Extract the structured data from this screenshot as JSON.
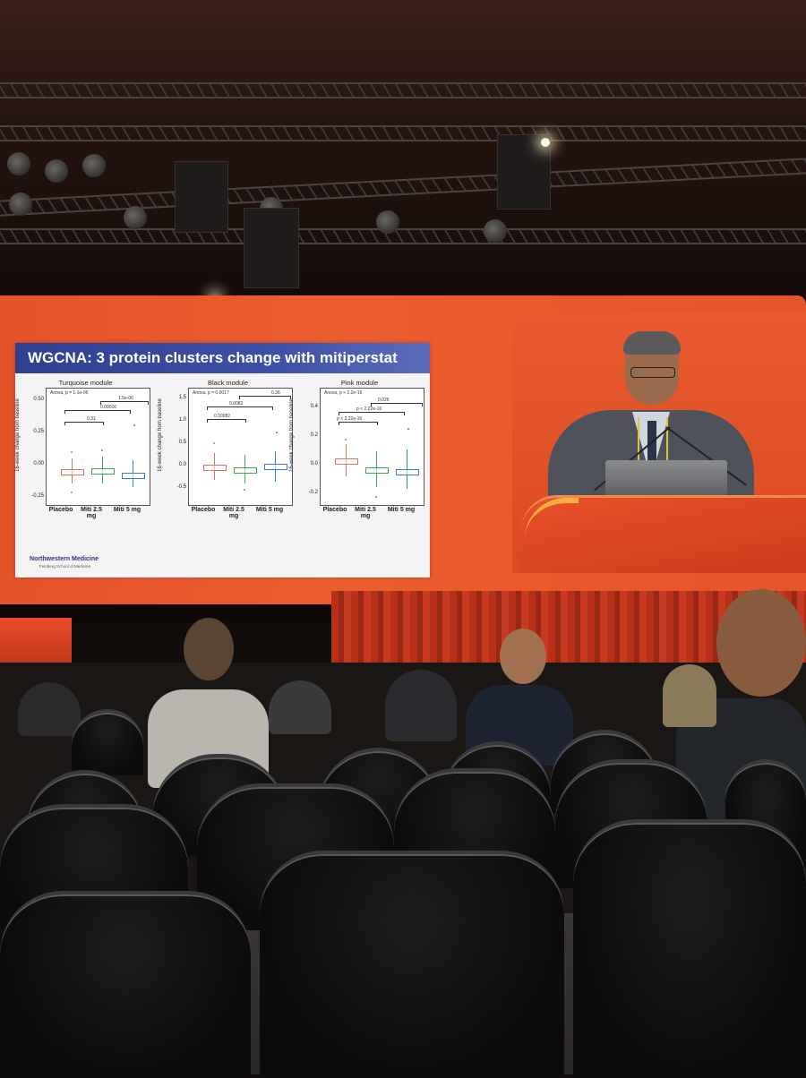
{
  "slide": {
    "title": "WGCNA: 3 protein clusters change with mitiperstat",
    "ylabel": "16-week change from baseline",
    "logo_name": "Northwestern Medicine",
    "logo_sub": "Feinberg School of Medicine",
    "panels": [
      {
        "title": "Turquoise module",
        "anova": "Anova, p = 1.1e-06",
        "yticks": [
          "0.50",
          "0.25",
          "0.00",
          "-0.25"
        ],
        "comparisons": [
          "1.5e-06",
          "0.00016",
          "0.31"
        ],
        "xlabels": [
          "Placebo",
          "Miti 2.5 mg",
          "Miti 5 mg"
        ]
      },
      {
        "title": "Black module",
        "anova": "Anova, p = 0.0017",
        "yticks": [
          "1.5",
          "1.0",
          "0.5",
          "0.0",
          "-0.5"
        ],
        "comparisons": [
          "0.36",
          "0.0082",
          "0.00082"
        ],
        "xlabels": [
          "Placebo",
          "Miti 2.5 mg",
          "Miti 5 mg"
        ]
      },
      {
        "title": "Pink module",
        "anova": "Anova, p < 2.2e-16",
        "yticks": [
          "0.4",
          "0.2",
          "0.0",
          "-0.2"
        ],
        "comparisons": [
          "0.026",
          "p < 2.22e-16",
          "p < 2.22e-16"
        ],
        "xlabels": [
          "Placebo",
          "Miti 2.5 mg",
          "Miti 5 mg"
        ]
      }
    ]
  },
  "colors": {
    "screen": "#e8552b",
    "slide_header": "#34449a",
    "placebo": "#e07060",
    "miti25": "#3aa84a",
    "miti5": "#3a7ad0"
  }
}
